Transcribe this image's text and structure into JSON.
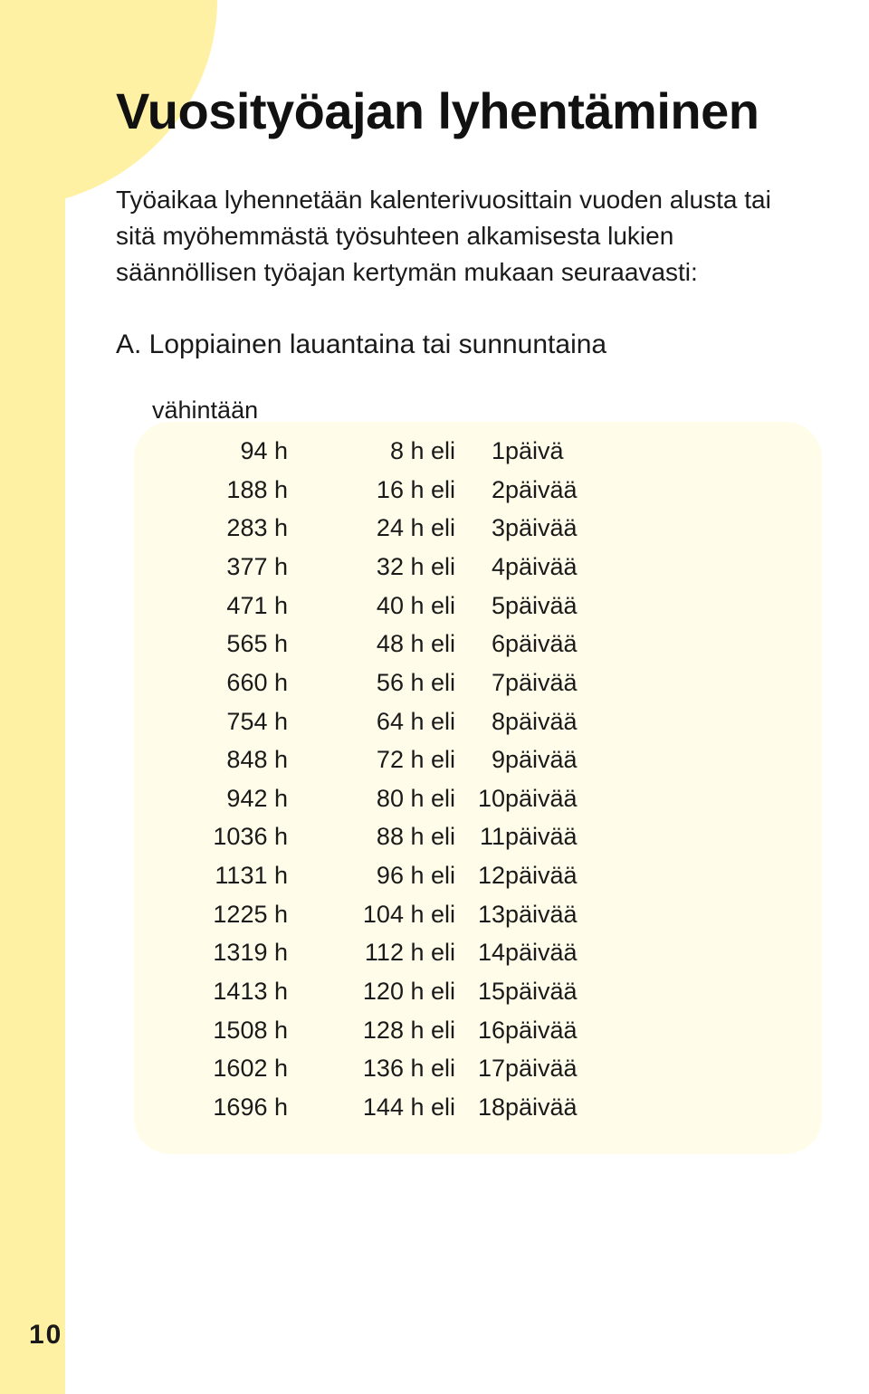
{
  "title": "Vuosityöajan lyhentäminen",
  "intro": "Työaikaa lyhennetään kalenterivuosittain vuoden alusta tai sitä myöhemmästä työsuhteen alkamisesta lukien säännöllisen työajan kertymän mukaan seuraavasti:",
  "subtitle": "A. Loppiainen lauantaina tai sunnuntaina",
  "table": {
    "header": "vähintään",
    "rows": [
      {
        "hours": "94 h",
        "eli": "8 h eli",
        "days": "1",
        "unit": "päivä"
      },
      {
        "hours": "188 h",
        "eli": "16 h eli",
        "days": "2",
        "unit": "päivää"
      },
      {
        "hours": "283 h",
        "eli": "24 h eli",
        "days": "3",
        "unit": "päivää"
      },
      {
        "hours": "377 h",
        "eli": "32 h eli",
        "days": "4",
        "unit": "päivää"
      },
      {
        "hours": "471 h",
        "eli": "40 h eli",
        "days": "5",
        "unit": "päivää"
      },
      {
        "hours": "565 h",
        "eli": "48 h eli",
        "days": "6",
        "unit": "päivää"
      },
      {
        "hours": "660 h",
        "eli": "56 h eli",
        "days": "7",
        "unit": "päivää"
      },
      {
        "hours": "754 h",
        "eli": "64 h eli",
        "days": "8",
        "unit": "päivää"
      },
      {
        "hours": "848 h",
        "eli": "72 h eli",
        "days": "9",
        "unit": "päivää"
      },
      {
        "hours": "942 h",
        "eli": "80 h eli",
        "days": "10",
        "unit": "päivää"
      },
      {
        "hours": "1036 h",
        "eli": "88 h eli",
        "days": "11",
        "unit": "päivää"
      },
      {
        "hours": "1131 h",
        "eli": "96 h eli",
        "days": "12",
        "unit": "päivää"
      },
      {
        "hours": "1225 h",
        "eli": "104 h eli",
        "days": "13",
        "unit": "päivää"
      },
      {
        "hours": "1319 h",
        "eli": "112 h eli",
        "days": "14",
        "unit": "päivää"
      },
      {
        "hours": "1413 h",
        "eli": "120 h eli",
        "days": "15",
        "unit": "päivää"
      },
      {
        "hours": "1508 h",
        "eli": "128 h eli",
        "days": "16",
        "unit": "päivää"
      },
      {
        "hours": "1602 h",
        "eli": "136 h eli",
        "days": "17",
        "unit": "päivää"
      },
      {
        "hours": "1696 h",
        "eli": "144 h eli",
        "days": "18",
        "unit": "päivää"
      }
    ]
  },
  "page_number": "10",
  "colors": {
    "accent_band": "#fff1a3",
    "table_bg": "#fffde9",
    "text": "#1a1a1a",
    "page_bg": "#ffffff"
  }
}
